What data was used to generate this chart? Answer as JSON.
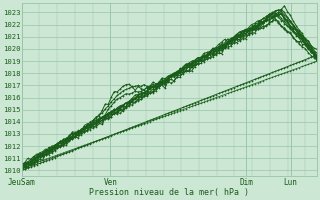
{
  "title": "Pression niveau de la mer( hPa )",
  "ylabel_values": [
    1010,
    1011,
    1012,
    1013,
    1014,
    1015,
    1016,
    1017,
    1018,
    1019,
    1020,
    1021,
    1022,
    1023
  ],
  "ylim": [
    1009.5,
    1023.8
  ],
  "xlim": [
    0,
    1
  ],
  "x_ticks_labels": [
    "JeuSam",
    "Ven",
    "Dim",
    "Lun"
  ],
  "x_ticks_pos": [
    0.0,
    0.3,
    0.76,
    0.91
  ],
  "background_color": "#cce8d4",
  "grid_color": "#99c4aa",
  "line_color": "#1a5c1a",
  "n_points": 100,
  "figsize": [
    3.2,
    2.0
  ],
  "dpi": 100
}
